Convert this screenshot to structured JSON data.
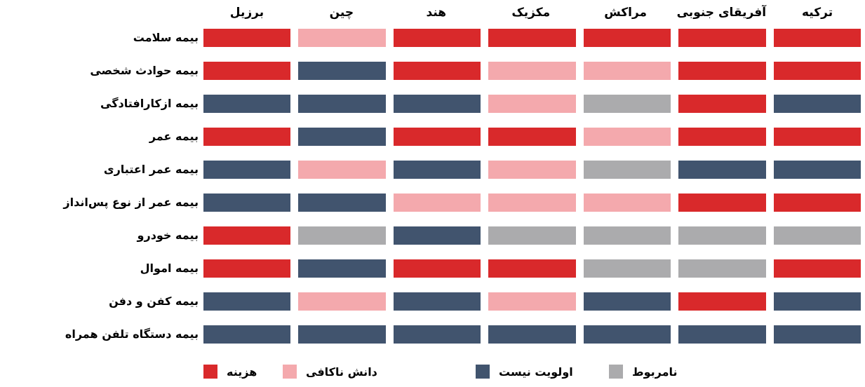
{
  "chart_data": {
    "type": "heatmap",
    "title": "",
    "legend_position": "bottom",
    "columns": [
      "برزیل",
      "چین",
      "هند",
      "مکزیک",
      "مراکش",
      "آفریقای جنوبی",
      "ترکیه"
    ],
    "rows": [
      "بیمه سلامت",
      "بیمه حوادث شخصی",
      "بیمه ازکارافتادگی",
      "بیمه عمر",
      "بیمه عمر اعتباری",
      "بیمه عمر از نوع پس‌انداز",
      "بیمه خودرو",
      "بیمه اموال",
      "بیمه کفن و دفن",
      "بیمه دستگاه تلفن همراه"
    ],
    "legend": [
      {
        "code": "C",
        "label": "هزینه",
        "color": "#D9292B"
      },
      {
        "code": "K",
        "label": "دانش ناکافی",
        "color": "#F4A9AD"
      },
      {
        "code": "P",
        "label": "اولویت نیست",
        "color": "#41546E"
      },
      {
        "code": "I",
        "label": "نامربوط",
        "color": "#ABABAD"
      }
    ],
    "cells": [
      [
        "C",
        "K",
        "C",
        "C",
        "C",
        "C",
        "C"
      ],
      [
        "C",
        "P",
        "C",
        "K",
        "K",
        "C",
        "C"
      ],
      [
        "P",
        "P",
        "P",
        "K",
        "I",
        "C",
        "P"
      ],
      [
        "C",
        "P",
        "C",
        "C",
        "K",
        "C",
        "C"
      ],
      [
        "P",
        "K",
        "P",
        "K",
        "I",
        "P",
        "P"
      ],
      [
        "P",
        "P",
        "K",
        "K",
        "K",
        "C",
        "C"
      ],
      [
        "C",
        "I",
        "P",
        "I",
        "I",
        "I",
        "I"
      ],
      [
        "C",
        "P",
        "C",
        "C",
        "I",
        "I",
        "C"
      ],
      [
        "P",
        "K",
        "P",
        "K",
        "P",
        "C",
        "P"
      ],
      [
        "P",
        "P",
        "P",
        "P",
        "P",
        "P",
        "P"
      ]
    ],
    "background": "#FFFFFF"
  }
}
